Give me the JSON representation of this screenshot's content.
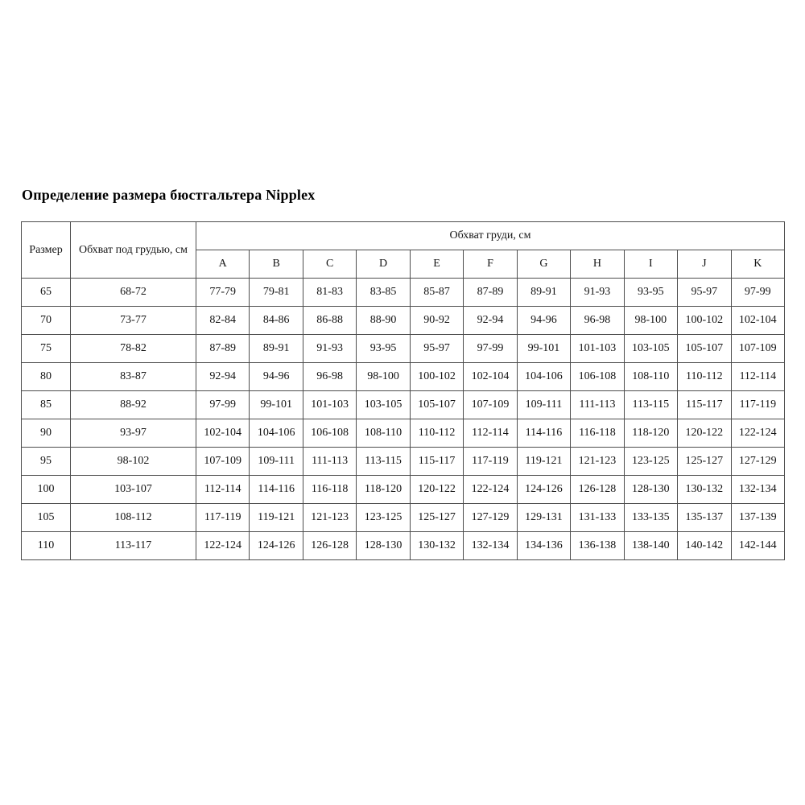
{
  "page": {
    "title": "Определение размера бюстгальтера Nipplex"
  },
  "table": {
    "size_header": "Размер",
    "underbust_header": "Обхват под грудью, см",
    "bust_group_header": "Обхват груди, см",
    "cup_letters": [
      "A",
      "B",
      "C",
      "D",
      "E",
      "F",
      "G",
      "H",
      "I",
      "J",
      "K"
    ],
    "rows": [
      {
        "size": "65",
        "underbust": "68-72",
        "cups": [
          "77-79",
          "79-81",
          "81-83",
          "83-85",
          "85-87",
          "87-89",
          "89-91",
          "91-93",
          "93-95",
          "95-97",
          "97-99"
        ]
      },
      {
        "size": "70",
        "underbust": "73-77",
        "cups": [
          "82-84",
          "84-86",
          "86-88",
          "88-90",
          "90-92",
          "92-94",
          "94-96",
          "96-98",
          "98-100",
          "100-102",
          "102-104"
        ]
      },
      {
        "size": "75",
        "underbust": "78-82",
        "cups": [
          "87-89",
          "89-91",
          "91-93",
          "93-95",
          "95-97",
          "97-99",
          "99-101",
          "101-103",
          "103-105",
          "105-107",
          "107-109"
        ]
      },
      {
        "size": "80",
        "underbust": "83-87",
        "cups": [
          "92-94",
          "94-96",
          "96-98",
          "98-100",
          "100-102",
          "102-104",
          "104-106",
          "106-108",
          "108-110",
          "110-112",
          "112-114"
        ]
      },
      {
        "size": "85",
        "underbust": "88-92",
        "cups": [
          "97-99",
          "99-101",
          "101-103",
          "103-105",
          "105-107",
          "107-109",
          "109-111",
          "111-113",
          "113-115",
          "115-117",
          "117-119"
        ]
      },
      {
        "size": "90",
        "underbust": "93-97",
        "cups": [
          "102-104",
          "104-106",
          "106-108",
          "108-110",
          "110-112",
          "112-114",
          "114-116",
          "116-118",
          "118-120",
          "120-122",
          "122-124"
        ]
      },
      {
        "size": "95",
        "underbust": "98-102",
        "cups": [
          "107-109",
          "109-111",
          "111-113",
          "113-115",
          "115-117",
          "117-119",
          "119-121",
          "121-123",
          "123-125",
          "125-127",
          "127-129"
        ]
      },
      {
        "size": "100",
        "underbust": "103-107",
        "cups": [
          "112-114",
          "114-116",
          "116-118",
          "118-120",
          "120-122",
          "122-124",
          "124-126",
          "126-128",
          "128-130",
          "130-132",
          "132-134"
        ]
      },
      {
        "size": "105",
        "underbust": "108-112",
        "cups": [
          "117-119",
          "119-121",
          "121-123",
          "123-125",
          "125-127",
          "127-129",
          "129-131",
          "131-133",
          "133-135",
          "135-137",
          "137-139"
        ]
      },
      {
        "size": "110",
        "underbust": "113-117",
        "cups": [
          "122-124",
          "124-126",
          "126-128",
          "128-130",
          "130-132",
          "132-134",
          "134-136",
          "136-138",
          "138-140",
          "140-142",
          "142-144"
        ]
      }
    ]
  }
}
